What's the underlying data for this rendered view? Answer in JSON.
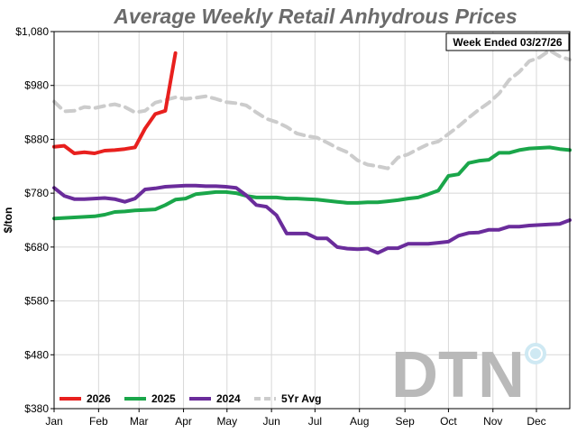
{
  "chart_data": {
    "type": "line",
    "title": "Average Weekly Retail Anhydrous Prices",
    "ylabel": "$/ton",
    "xlabel": "",
    "badge": "Week Ended 03/27/26",
    "logo": "DTN",
    "ylim": [
      380,
      1080
    ],
    "yticks": [
      380,
      480,
      580,
      680,
      780,
      880,
      980,
      1080
    ],
    "ytick_labels": [
      "$380",
      "$480",
      "$580",
      "$680",
      "$780",
      "$880",
      "$980",
      "$1,080"
    ],
    "xlim": [
      1,
      52
    ],
    "month_ticks": [
      {
        "label": "Jan",
        "week": 1
      },
      {
        "label": "Feb",
        "week": 5.4
      },
      {
        "label": "Mar",
        "week": 9.4
      },
      {
        "label": "Apr",
        "week": 13.8
      },
      {
        "label": "May",
        "week": 18.1
      },
      {
        "label": "Jun",
        "week": 22.5
      },
      {
        "label": "Jul",
        "week": 26.8
      },
      {
        "label": "Aug",
        "week": 31.2
      },
      {
        "label": "Sep",
        "week": 35.7
      },
      {
        "label": "Oct",
        "week": 40.0
      },
      {
        "label": "Nov",
        "week": 44.4
      },
      {
        "label": "Dec",
        "week": 48.7
      }
    ],
    "grid": true,
    "legend_position": "bottom-left",
    "series": [
      {
        "name": "5Yr Avg",
        "color": "#cccccc",
        "dash": true,
        "x": [
          1,
          2,
          3,
          4,
          5,
          6,
          7,
          8,
          9,
          10,
          11,
          12,
          13,
          14,
          15,
          16,
          17,
          18,
          19,
          20,
          21,
          22,
          23,
          24,
          25,
          26,
          27,
          28,
          29,
          30,
          31,
          32,
          33,
          34,
          35,
          36,
          37,
          38,
          39,
          40,
          41,
          42,
          43,
          44,
          45,
          46,
          47,
          48,
          49,
          50,
          51,
          52
        ],
        "values": [
          950,
          932,
          933,
          940,
          938,
          942,
          945,
          940,
          930,
          933,
          948,
          953,
          958,
          955,
          957,
          960,
          955,
          949,
          947,
          943,
          930,
          918,
          912,
          903,
          891,
          886,
          883,
          874,
          864,
          856,
          841,
          833,
          830,
          826,
          846,
          852,
          862,
          871,
          876,
          890,
          904,
          920,
          935,
          948,
          965,
          990,
          1005,
          1025,
          1032,
          1045,
          1034,
          1028
        ]
      },
      {
        "name": "2025",
        "color": "#1aa64a",
        "dash": false,
        "x": [
          1,
          2,
          3,
          4,
          5,
          6,
          7,
          8,
          9,
          10,
          11,
          12,
          13,
          14,
          15,
          16,
          17,
          18,
          19,
          20,
          21,
          22,
          23,
          24,
          25,
          26,
          27,
          28,
          29,
          30,
          31,
          32,
          33,
          34,
          35,
          36,
          37,
          38,
          39,
          40,
          41,
          42,
          43,
          44,
          45,
          46,
          47,
          48,
          49,
          50,
          51,
          52
        ],
        "values": [
          733,
          734,
          735,
          736,
          737,
          740,
          745,
          746,
          748,
          749,
          750,
          758,
          768,
          770,
          778,
          780,
          782,
          782,
          780,
          775,
          772,
          772,
          772,
          770,
          770,
          769,
          768,
          766,
          764,
          762,
          762,
          763,
          763,
          765,
          767,
          770,
          772,
          778,
          785,
          812,
          815,
          836,
          840,
          842,
          855,
          855,
          860,
          863,
          864,
          865,
          862,
          860
        ]
      },
      {
        "name": "2024",
        "color": "#6a2c9b",
        "dash": false,
        "x": [
          1,
          2,
          3,
          4,
          5,
          6,
          7,
          8,
          9,
          10,
          11,
          12,
          13,
          14,
          15,
          16,
          17,
          18,
          19,
          20,
          21,
          22,
          23,
          24,
          25,
          26,
          27,
          28,
          29,
          30,
          31,
          32,
          33,
          34,
          35,
          36,
          37,
          38,
          39,
          40,
          41,
          42,
          43,
          44,
          45,
          46,
          47,
          48,
          49,
          50,
          51,
          52
        ],
        "values": [
          790,
          775,
          769,
          769,
          770,
          771,
          769,
          764,
          770,
          787,
          789,
          792,
          793,
          794,
          794,
          793,
          793,
          792,
          790,
          776,
          758,
          755,
          739,
          705,
          705,
          705,
          696,
          696,
          680,
          677,
          676,
          677,
          669,
          678,
          678,
          686,
          686,
          686,
          688,
          690,
          701,
          706,
          707,
          712,
          712,
          718,
          718,
          720,
          721,
          722,
          723,
          730
        ]
      },
      {
        "name": "2026",
        "color": "#e8201e",
        "dash": false,
        "x": [
          1,
          2,
          3,
          4,
          5,
          6,
          7,
          8,
          9,
          10,
          11,
          12,
          13
        ],
        "values": [
          866,
          868,
          854,
          856,
          854,
          859,
          860,
          862,
          865,
          900,
          927,
          933,
          1040
        ]
      }
    ],
    "legend_order": [
      "2026",
      "2025",
      "2024",
      "5Yr Avg"
    ]
  }
}
